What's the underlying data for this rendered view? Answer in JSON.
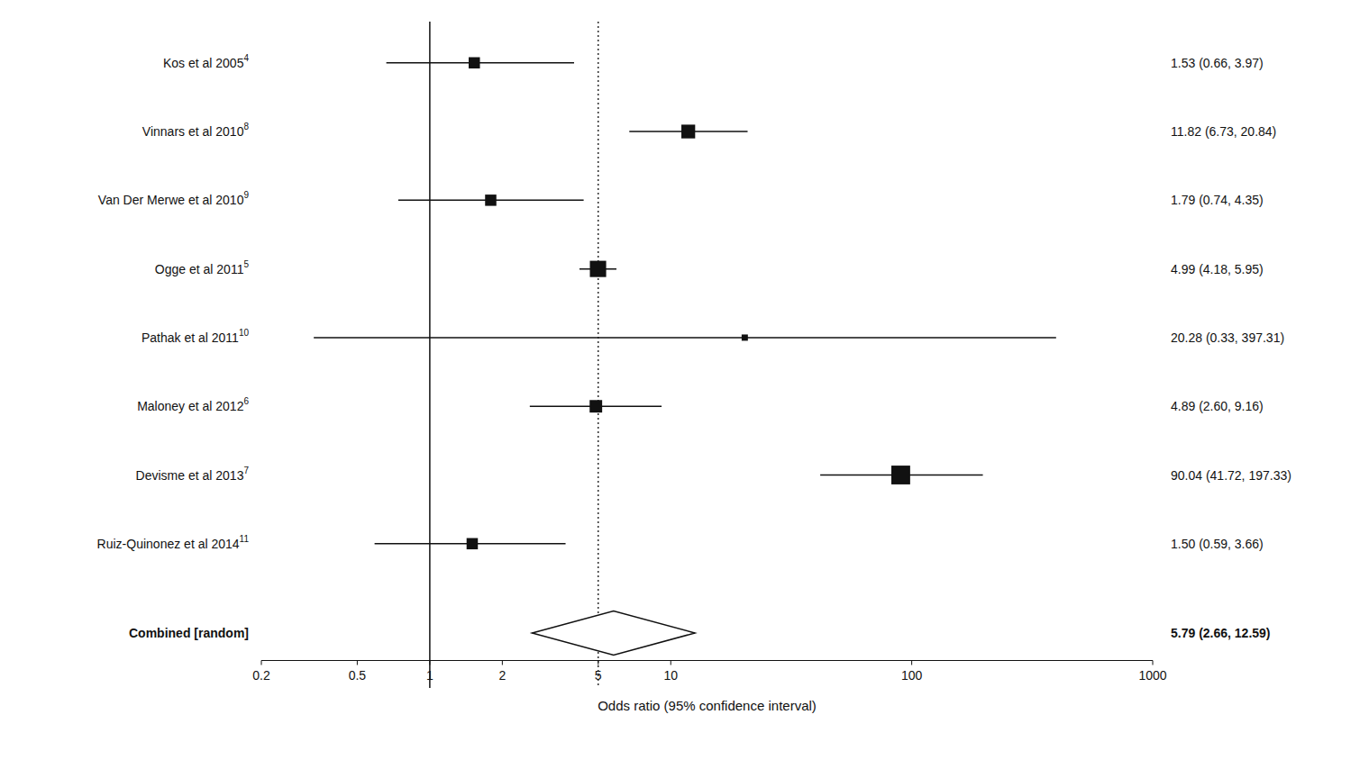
{
  "chart_data": {
    "type": "forest",
    "x_label": "Odds ratio (95% confidence interval)",
    "log": "x",
    "xlim": [
      0.2,
      1000
    ],
    "xticks": [
      0.2,
      0.5,
      1,
      2,
      5,
      10,
      100,
      1000
    ],
    "color": "#111111",
    "categories": [
      "Kos et al 2005",
      "Vinnars et al 2010",
      "Van Der Merwe et al 2010",
      "Ogge et al 2011",
      "Pathak et al 2011",
      "Maloney et al 2012",
      "Devisme et al 2013",
      "Ruiz-Quinonez et al 2014"
    ],
    "superscripts": [
      "4",
      "8",
      "9",
      "5",
      "10",
      "6",
      "7",
      "11"
    ],
    "values": [
      1.53,
      11.82,
      1.79,
      4.99,
      20.28,
      4.89,
      90.04,
      1.5
    ],
    "ci_low": [
      0.66,
      6.73,
      0.74,
      4.18,
      0.33,
      2.6,
      41.72,
      0.59
    ],
    "ci_high": [
      3.97,
      20.84,
      4.35,
      5.95,
      397.31,
      9.16,
      197.33,
      3.66
    ],
    "box_sizes": [
      9,
      11,
      9,
      13,
      5,
      10,
      15,
      9
    ],
    "value_labels": [
      "1.53 (0.66, 3.97)",
      "11.82 (6.73, 20.84)",
      "1.79 (0.74, 4.35)",
      "4.99 (4.18, 5.95)",
      "20.28 (0.33, 397.31)",
      "4.89 (2.60, 9.16)",
      "90.04 (41.72, 197.33)",
      "1.50 (0.59, 3.66)"
    ],
    "combined": {
      "label": "Combined [random]",
      "value": 5.79,
      "ci_low": 2.66,
      "ci_high": 12.59,
      "value_label": "5.79 (2.66, 12.59)"
    },
    "reference_lines": [
      {
        "value": 1.0,
        "line_style": "solid"
      },
      {
        "value": 5.0,
        "line_style": "dotted"
      }
    ]
  }
}
